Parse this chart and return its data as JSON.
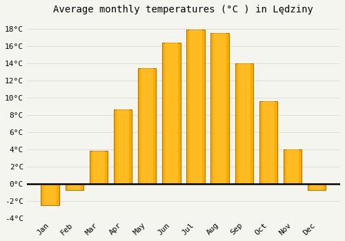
{
  "title": "Average monthly temperatures (°C ) in Lędziny",
  "months": [
    "Jan",
    "Feb",
    "Mar",
    "Apr",
    "May",
    "Jun",
    "Jul",
    "Aug",
    "Sep",
    "Oct",
    "Nov",
    "Dec"
  ],
  "temperatures": [
    -2.5,
    -0.7,
    3.8,
    8.6,
    13.4,
    16.4,
    17.9,
    17.5,
    14.0,
    9.6,
    4.0,
    -0.7
  ],
  "bar_color": "#FFA500",
  "bar_edge_color": "#888800",
  "ylim": [
    -4,
    19
  ],
  "yticks": [
    -4,
    -2,
    0,
    2,
    4,
    6,
    8,
    10,
    12,
    14,
    16,
    18
  ],
  "background_color": "#F5F5F0",
  "plot_bg_color": "#F5F5F0",
  "grid_color": "#DDDDDD",
  "title_fontsize": 10,
  "tick_fontsize": 8,
  "figsize": [
    5.0,
    3.5
  ],
  "dpi": 100
}
